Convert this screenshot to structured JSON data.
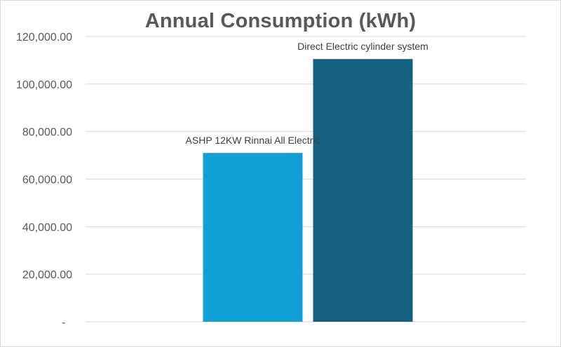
{
  "chart_data": {
    "type": "bar",
    "title": "Annual Consumption (kWh)",
    "categories": [
      "",
      "ASHP 12KW Rinnai All Electric",
      "Direct Electric cylinder system",
      ""
    ],
    "values": [
      null,
      71000,
      110500,
      null
    ],
    "bar_colors": [
      "#ffffff",
      "#129fd6",
      "#176180",
      "#ffffff"
    ],
    "data_labels": [
      "",
      "ASHP 12KW Rinnai All Electric",
      "Direct Electric cylinder system",
      ""
    ],
    "ylim": [
      0,
      120000
    ],
    "y_ticks": [
      0,
      20000,
      40000,
      60000,
      80000,
      100000,
      120000
    ],
    "y_tick_labels": [
      "-",
      "20,000.00",
      "40,000.00",
      "60,000.00",
      "80,000.00",
      "100,000.00",
      "120,000.00"
    ],
    "xlabel": "",
    "ylabel": "",
    "grid": true,
    "legend": "none",
    "gridline_color": "#d9d9d9",
    "text_color": "#595959"
  }
}
